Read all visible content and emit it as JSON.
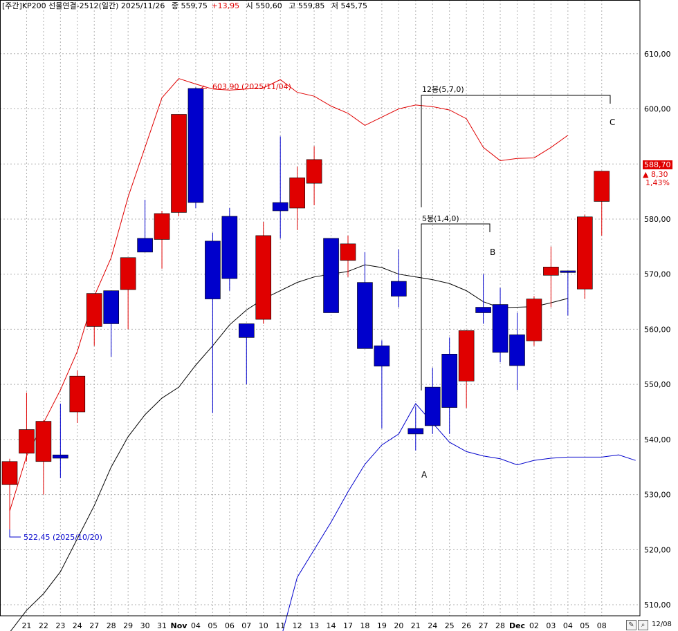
{
  "header": {
    "title": "[주간]KP200 선물연결-2512(일간) 2025/11/26",
    "close_label": "종 559,75",
    "change": "+13,95",
    "open_label": "시 550,60",
    "high_label": "고 559,85",
    "low_label": "저 545,75"
  },
  "price_badge": {
    "value": "588,70",
    "change": "▲ 8,30",
    "pct": "1,43%"
  },
  "colors": {
    "up": "#e00000",
    "down": "#0000cc",
    "upper_band": "#e00000",
    "middle_band": "#000000",
    "lower_band": "#0000cc",
    "grid": "#b0b0b0"
  },
  "toolbar": {
    "pen_icon": "pencil-icon",
    "zoom_icon": "magnifier-icon",
    "date_label": "12/08"
  },
  "chart_data": {
    "type": "candlestick",
    "ylim": [
      508,
      618
    ],
    "y_ticks": [
      "510,00",
      "520,00",
      "530,00",
      "540,00",
      "550,00",
      "560,00",
      "570,00",
      "580,00",
      "590,00",
      "600,00",
      "610,00"
    ],
    "y_tick_values": [
      510,
      520,
      530,
      540,
      550,
      560,
      570,
      580,
      590,
      600,
      610
    ],
    "x_labels": [
      "21",
      "22",
      "23",
      "24",
      "27",
      "28",
      "29",
      "30",
      "31",
      "Nov",
      "04",
      "05",
      "06",
      "07",
      "10",
      "11",
      "12",
      "13",
      "14",
      "17",
      "18",
      "19",
      "20",
      "21",
      "24",
      "25",
      "26",
      "27",
      "28",
      "Dec",
      "02",
      "03",
      "04",
      "05",
      "08"
    ],
    "bold_labels": [
      "Nov",
      "Dec"
    ],
    "candles": [
      {
        "o": 531.8,
        "h": 536.5,
        "l": 523.0,
        "c": 536.0
      },
      {
        "o": 537.5,
        "h": 548.5,
        "l": 536.0,
        "c": 541.8
      },
      {
        "o": 536.0,
        "h": 543.5,
        "l": 530.0,
        "c": 543.3
      },
      {
        "o": 537.2,
        "h": 546.5,
        "l": 533.0,
        "c": 536.6
      },
      {
        "o": 545.0,
        "h": 552.5,
        "l": 543.0,
        "c": 551.5
      },
      {
        "o": 560.5,
        "h": 566.5,
        "l": 557.0,
        "c": 566.5
      },
      {
        "o": 567.0,
        "h": 567.0,
        "l": 555.0,
        "c": 561.0
      },
      {
        "o": 567.2,
        "h": 573.0,
        "l": 560.0,
        "c": 573.0
      },
      {
        "o": 576.5,
        "h": 583.5,
        "l": 574.0,
        "c": 574.0
      },
      {
        "o": 576.3,
        "h": 581.5,
        "l": 571.0,
        "c": 581.0
      },
      {
        "o": 581.2,
        "h": 599.0,
        "l": 580.5,
        "c": 599.0
      },
      {
        "o": 603.7,
        "h": 603.9,
        "l": 582.0,
        "c": 583.0
      },
      {
        "o": 576.0,
        "h": 577.5,
        "l": 544.8,
        "c": 565.5
      },
      {
        "o": 580.5,
        "h": 582.0,
        "l": 567.0,
        "c": 569.2
      },
      {
        "o": 561.0,
        "h": 561.0,
        "l": 550.0,
        "c": 558.5
      },
      {
        "o": 561.8,
        "h": 579.5,
        "l": 561.0,
        "c": 577.0
      },
      {
        "o": 583.0,
        "h": 595.0,
        "l": 576.5,
        "c": 581.5
      },
      {
        "o": 582.0,
        "h": 589.5,
        "l": 578.0,
        "c": 587.5
      },
      {
        "o": 586.5,
        "h": 593.2,
        "l": 582.5,
        "c": 590.8
      },
      {
        "o": 576.5,
        "h": 576.5,
        "l": 563.0,
        "c": 563.0
      },
      {
        "o": 572.5,
        "h": 577.0,
        "l": 569.5,
        "c": 575.5
      },
      {
        "o": 568.5,
        "h": 574.0,
        "l": 556.5,
        "c": 556.5
      },
      {
        "o": 557.0,
        "h": 558.0,
        "l": 542.0,
        "c": 553.3
      },
      {
        "o": 568.7,
        "h": 574.5,
        "l": 564.0,
        "c": 566.0
      },
      {
        "o": 542.0,
        "h": 546.0,
        "l": 538.0,
        "c": 541.0
      },
      {
        "o": 549.5,
        "h": 553.0,
        "l": 541.0,
        "c": 542.5
      },
      {
        "o": 555.5,
        "h": 558.5,
        "l": 541.0,
        "c": 545.8
      },
      {
        "o": 550.6,
        "h": 559.85,
        "l": 545.75,
        "c": 559.75
      },
      {
        "o": 564.0,
        "h": 570.0,
        "l": 561.0,
        "c": 563.0
      },
      {
        "o": 564.5,
        "h": 567.5,
        "l": 554.0,
        "c": 555.8
      },
      {
        "o": 559.0,
        "h": 563.0,
        "l": 549.0,
        "c": 553.4
      },
      {
        "o": 557.9,
        "h": 566.0,
        "l": 557.0,
        "c": 565.5
      },
      {
        "o": 569.8,
        "h": 575.0,
        "l": 564.0,
        "c": 571.3
      },
      {
        "o": 570.6,
        "h": 570.6,
        "l": 562.5,
        "c": 570.3
      },
      {
        "o": 567.3,
        "h": 580.8,
        "l": 565.5,
        "c": 580.4
      },
      {
        "o": 583.2,
        "h": 588.7,
        "l": 577.0,
        "c": 588.7
      }
    ],
    "upper_band": [
      527,
      537,
      543,
      549,
      556,
      566,
      573,
      584,
      593,
      602,
      605.5,
      604.5,
      603.6,
      603.4,
      603.6,
      603.8,
      605.3,
      603,
      602.3,
      600.5,
      599.2,
      597,
      598.5,
      600,
      600.7,
      600.4,
      599.8,
      598.2,
      593,
      590.6,
      591,
      591.1,
      593,
      595.2
    ],
    "middle_band": [
      505,
      509,
      512,
      516,
      522,
      528,
      535,
      540.5,
      544.5,
      547.5,
      549.5,
      553.5,
      557,
      560.8,
      563.5,
      565.5,
      567,
      568.5,
      569.5,
      570,
      570.5,
      571.7,
      571.2,
      570,
      569.5,
      569,
      568.3,
      567,
      565,
      563.9,
      564,
      564.1,
      564.8,
      565.6
    ],
    "lower_band": [
      503.5,
      515,
      520,
      525,
      530.5,
      535.5,
      539,
      541,
      546.5,
      543,
      539.5,
      537.8,
      537,
      536.5,
      535.4,
      536.2,
      536.6,
      536.8,
      536.8,
      536.8,
      537.2,
      536.2
    ],
    "lower_band_start_index": 16,
    "annotations": {
      "high_label": "603,90 (2025/11/04)",
      "low_label": "522,45 (2025/10/20)",
      "bracket_12": "12봉(5,7,0)",
      "bracket_5": "5봉(1,4,0)",
      "point_A": "A",
      "point_B": "B",
      "point_C": "C"
    }
  }
}
